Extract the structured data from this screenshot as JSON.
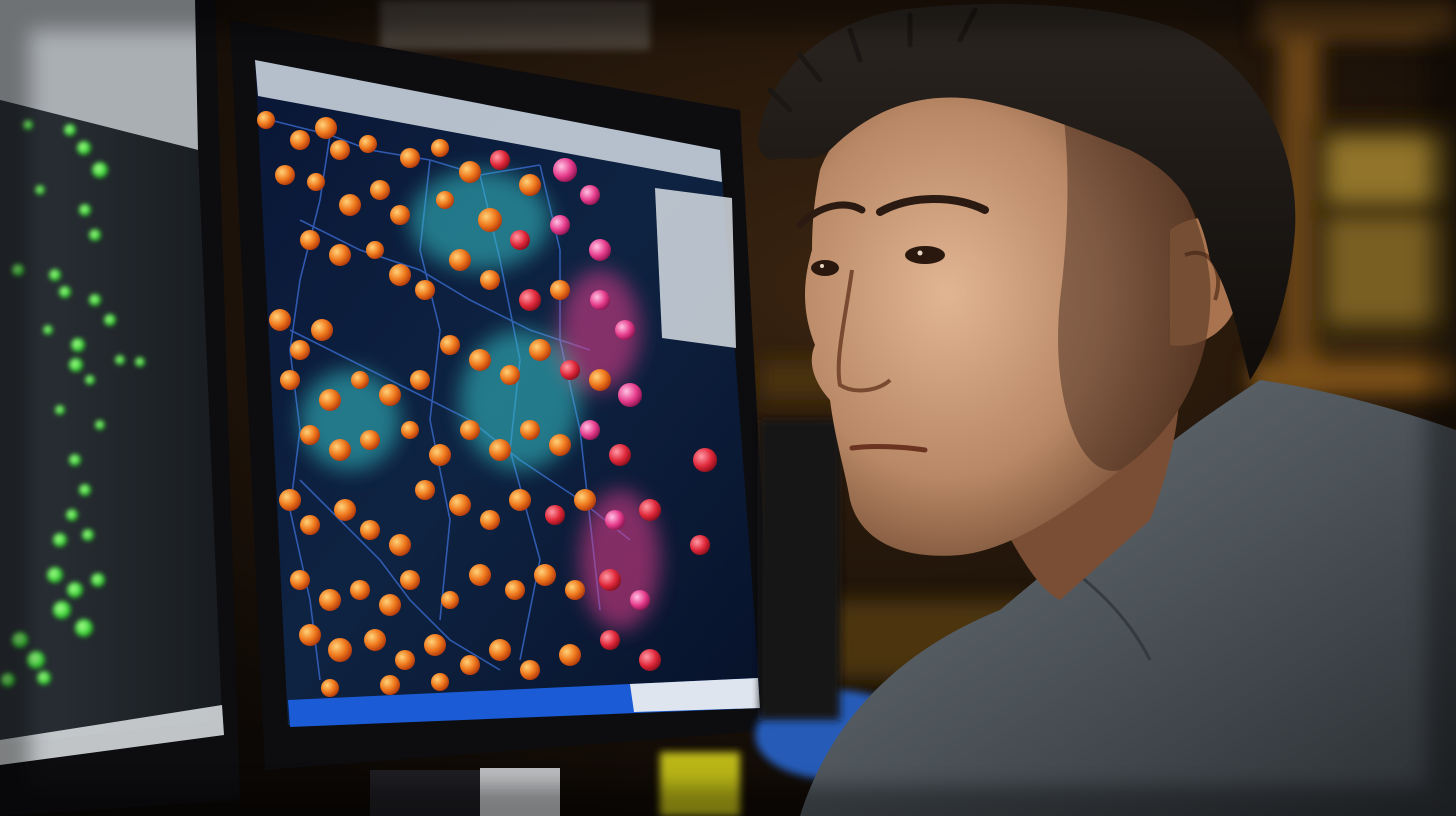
{
  "scene": {
    "palette": {
      "background": "#120d08",
      "shelf_wood": "#6a4414",
      "monitor_bezel": "#0d0d10",
      "screen_navy": "#0d1a3a",
      "molecule_orange": "#f07a1e",
      "molecule_red": "#e0283a",
      "molecule_magenta": "#e63c8c",
      "molecule_cyan": "#35c3c8",
      "left_screen_green": "#38d936",
      "skin": "#b98866",
      "hair": "#1b1714",
      "shirt": "#4d545a",
      "desk_blue": "#2a6ad8",
      "desk_yellow": "#d9d51a"
    },
    "icons": {
      "left_monitor": "monitor-icon",
      "center_monitor": "monitor-icon",
      "person": "person-icon"
    }
  }
}
